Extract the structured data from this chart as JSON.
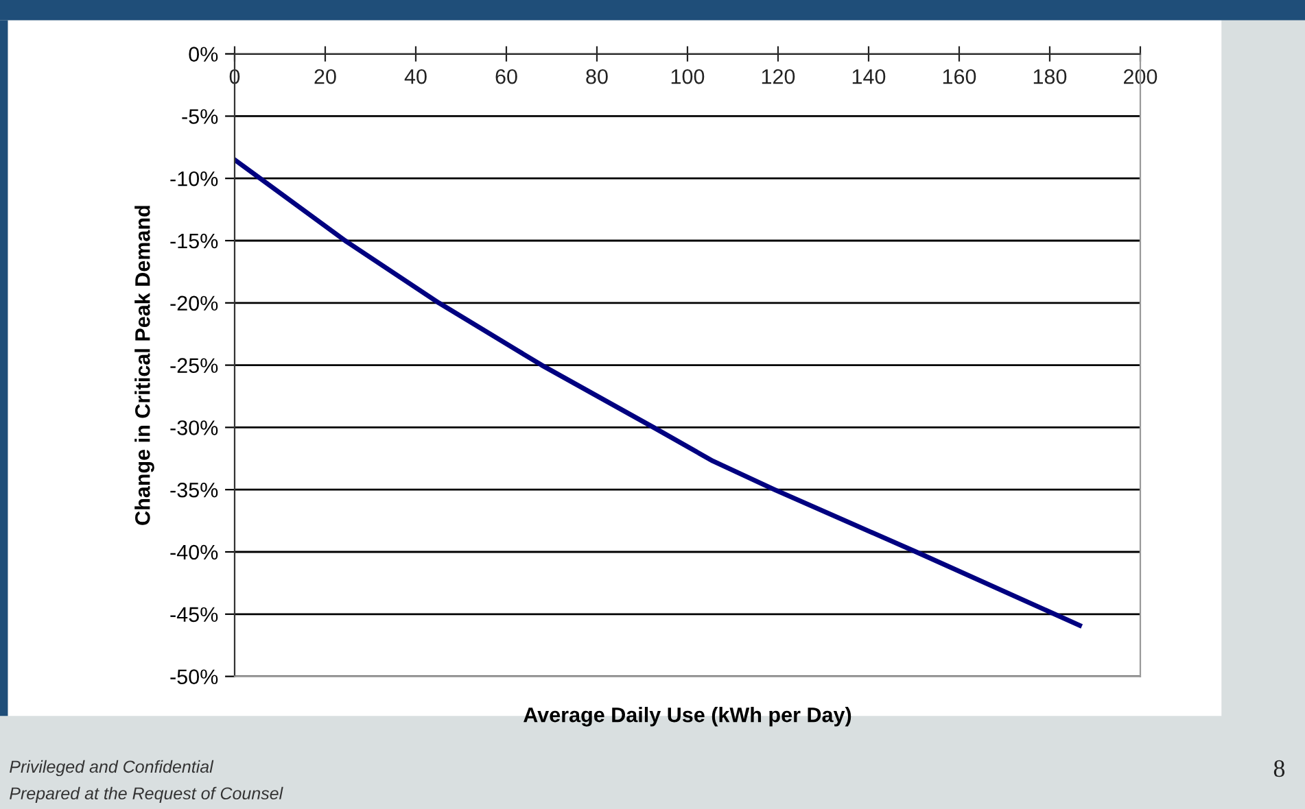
{
  "chart_data": {
    "type": "line",
    "xlabel": "Average Daily Use (kWh per Day)",
    "ylabel": "Change in Critical Peak Demand",
    "x": [
      0,
      24.4,
      45.1,
      67.8,
      92.5,
      105.6,
      119.2,
      150.5,
      186.6
    ],
    "series": [
      {
        "color": "#000080",
        "values": [
          -8.5,
          -15.0,
          -20.0,
          -25.0,
          -30.0,
          -32.7,
          -35.0,
          -40.0,
          -45.9
        ]
      }
    ],
    "xlim": [
      0,
      200
    ],
    "xticks": [
      0,
      20,
      40,
      60,
      80,
      100,
      120,
      140,
      160,
      180,
      200
    ],
    "ylim": [
      -50,
      0
    ],
    "yticks": [
      {
        "value": 0,
        "label": "0%"
      },
      {
        "value": -5,
        "label": "-5%"
      },
      {
        "value": -10,
        "label": "-10%"
      },
      {
        "value": -15,
        "label": "-15%"
      },
      {
        "value": -20,
        "label": "-20%"
      },
      {
        "value": -25,
        "label": "-25%"
      },
      {
        "value": -30,
        "label": "-30%"
      },
      {
        "value": -35,
        "label": "-35%"
      },
      {
        "value": -40,
        "label": "-40%"
      },
      {
        "value": -45,
        "label": "-45%"
      },
      {
        "value": -50,
        "label": "-50%"
      }
    ],
    "grid": "y",
    "marker": "none",
    "line_style": "solid",
    "annotations": [
      "Privileged and Confidential",
      "Prepared at the Request of Counsel",
      "8"
    ]
  }
}
